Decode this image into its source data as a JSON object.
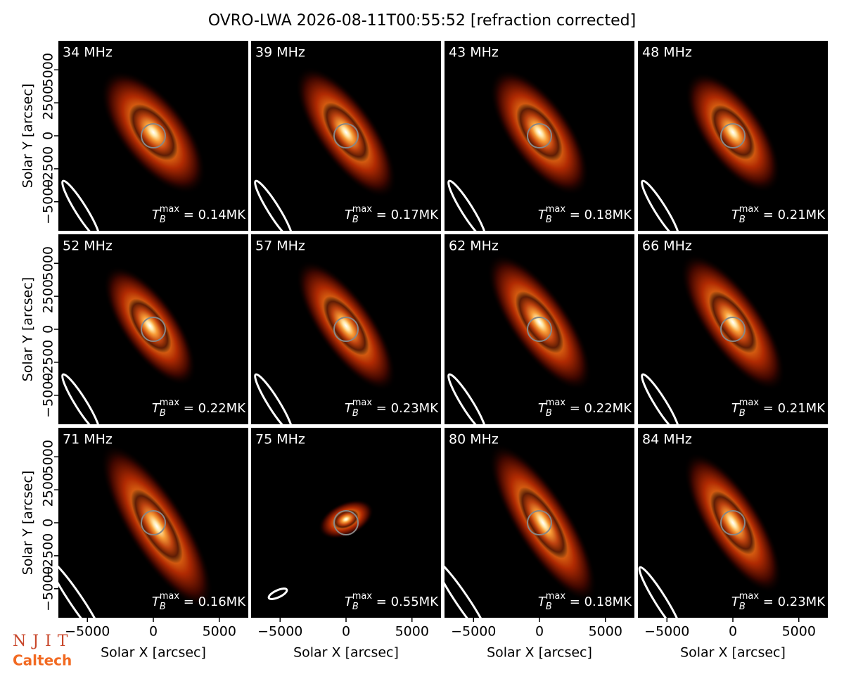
{
  "chart_data": {
    "type": "image_grid",
    "title": "OVRO-LWA 2026-08-11T00:55:52 [refraction corrected]",
    "xlabel": "Solar X [arcsec]",
    "ylabel": "Solar Y [arcsec]",
    "xlim": [
      -7200,
      7200
    ],
    "ylim": [
      -7200,
      7200
    ],
    "xticks": [
      {
        "value": -5000,
        "label": "−5000"
      },
      0,
      5000
    ],
    "yticks": [
      {
        "value": -5000,
        "label": "−5000"
      },
      {
        "value": -2500,
        "label": "−2500"
      },
      0,
      2500,
      5000
    ],
    "tb_symbol": "T",
    "tb_sub": "B",
    "tb_sup": "max",
    "panels": [
      {
        "label": "34 MHz",
        "tb_max": {
          "value": 0.14,
          "label": " = 0.14MK"
        }
      },
      {
        "label": "39 MHz",
        "tb_max": {
          "value": 0.17,
          "label": " = 0.17MK"
        }
      },
      {
        "label": "43 MHz",
        "tb_max": {
          "value": 0.18,
          "label": " = 0.18MK"
        }
      },
      {
        "label": "48 MHz",
        "tb_max": {
          "value": 0.21,
          "label": " = 0.21MK"
        }
      },
      {
        "label": "52 MHz",
        "tb_max": {
          "value": 0.22,
          "label": " = 0.22MK"
        }
      },
      {
        "label": "57 MHz",
        "tb_max": {
          "value": 0.23,
          "label": " = 0.23MK"
        }
      },
      {
        "label": "62 MHz",
        "tb_max": {
          "value": 0.22,
          "label": " = 0.22MK"
        }
      },
      {
        "label": "66 MHz",
        "tb_max": {
          "value": 0.21,
          "label": " = 0.21MK"
        }
      },
      {
        "label": "71 MHz",
        "tb_max": {
          "value": 0.16,
          "label": " = 0.16MK"
        }
      },
      {
        "label": "75 MHz",
        "tb_max": {
          "value": 0.55,
          "label": " = 0.55MK"
        }
      },
      {
        "label": "80 MHz",
        "tb_max": {
          "value": 0.18,
          "label": " = 0.18MK"
        }
      },
      {
        "label": "84 MHz",
        "tb_max": {
          "value": 0.23,
          "label": " = 0.23MK"
        }
      }
    ]
  },
  "logos": {
    "njit": "NJIT",
    "caltech": "Caltech"
  }
}
